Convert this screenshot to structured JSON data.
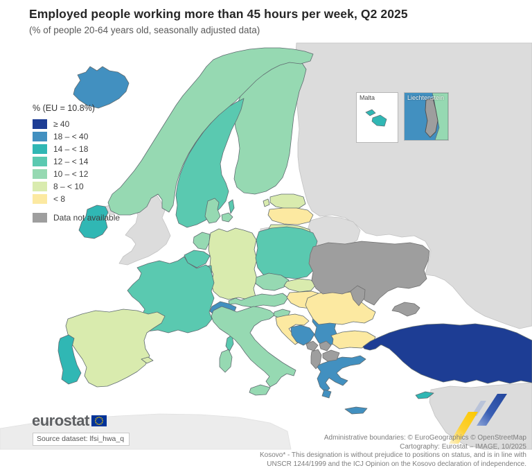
{
  "header": {
    "title": "Employed people working more than 45 hours per week, Q2 2025",
    "subtitle": "(% of people 20-64 years old, seasonally adjusted data)"
  },
  "legend": {
    "title": "% (EU = 10.8%)",
    "classes": [
      {
        "id": "c40",
        "label": "≥ 40",
        "color": "#1d3d94"
      },
      {
        "id": "c18",
        "label": "18 – < 40",
        "color": "#4290c0"
      },
      {
        "id": "c14",
        "label": "14 – < 18",
        "color": "#30b7b4"
      },
      {
        "id": "c12",
        "label": "12 – < 14",
        "color": "#5ac9b0"
      },
      {
        "id": "c10",
        "label": "10 – < 12",
        "color": "#96d9b2"
      },
      {
        "id": "c8",
        "label": "8 – < 10",
        "color": "#d9ebae"
      },
      {
        "id": "c0",
        "label": "< 8",
        "color": "#fce9a1"
      }
    ],
    "no_data": {
      "id": "na",
      "label": "Data not available",
      "color": "#9e9e9e"
    }
  },
  "map": {
    "colors": {
      "sea": "#ffffff",
      "other_land": "#dcdcdc",
      "africa_land": "#ececec",
      "border_data": "#5f6b70",
      "border_other": "#c2c2c2",
      "ribbon_yellow": "#fcc900",
      "ribbon_blue": "#2a52a8"
    },
    "countries": {
      "iceland": "c18",
      "norway": "c10",
      "sweden": "c12",
      "finland": "c10",
      "denmark": "c10",
      "estonia": "c8",
      "latvia": "c0",
      "lithuania": "c8",
      "ireland": "c14",
      "netherlands": "c10",
      "belgium": "c12",
      "luxembourg": "c12",
      "germany": "c8",
      "poland": "c12",
      "czechia": "c10",
      "slovakia": "c8",
      "austria": "c10",
      "hungary": "c0",
      "switzerland": "c18",
      "france": "c12",
      "italy": "c10",
      "slovenia": "c10",
      "croatia": "c0",
      "bosnia": "c18",
      "serbia": "c18",
      "montenegro": "na",
      "kosovo": "na",
      "north_macedonia": "na",
      "albania": "na",
      "greece": "c18",
      "bulgaria": "c0",
      "romania": "c0",
      "moldova": "na",
      "ukraine": "na",
      "turkey": "c40",
      "cyprus": "c14",
      "spain": "c8",
      "portugal": "c14",
      "malta": "c14",
      "liechtenstein": "na",
      "gotland": "c12",
      "crete": "c18",
      "corsica": "c12",
      "sicily": "c10",
      "sardinia": "c10",
      "uk": "other",
      "n_ireland": "other",
      "russia": "other",
      "belarus": "other",
      "kaliningrad": "other",
      "middle_east": "other"
    }
  },
  "insets": {
    "malta": {
      "label": "Malta"
    },
    "liechtenstein": {
      "label": "Liechtenstein"
    }
  },
  "footer": {
    "logo_text": "eurostat",
    "eu_flag": {
      "blue": "#003399",
      "star": "#ffcc00"
    },
    "source": "Source dataset: lfsi_hwa_q",
    "attribution": [
      "Administrative boundaries: © EuroGeographics © OpenStreetMap",
      "Cartography: Eurostat – IMAGE, 10/2025",
      "Kosovo* - This designation is without prejudice to positions on status, and is in line with",
      "UNSCR 1244/1999 and the ICJ Opinion on the Kosovo declaration of independence."
    ]
  },
  "chart_data": {
    "type": "choropleth-map",
    "title": "Employed people working more than 45 hours per week, Q2 2025",
    "subtitle": "(% of people 20-64 years old, seasonally adjusted data)",
    "unit": "% of people 20-64 years old",
    "eu_value": 10.8,
    "legend_bins": [
      "≥ 40",
      "18 – < 40",
      "14 – < 18",
      "12 – < 14",
      "10 – < 12",
      "8 – < 10",
      "< 8",
      "Data not available"
    ],
    "values_by_bin": {
      "≥ 40": [
        "Turkey"
      ],
      "18 – < 40": [
        "Iceland",
        "Switzerland",
        "Bosnia and Herzegovina",
        "Serbia",
        "Greece"
      ],
      "14 – < 18": [
        "Ireland",
        "Portugal",
        "Cyprus",
        "Malta"
      ],
      "12 – < 14": [
        "France",
        "Belgium",
        "Luxembourg",
        "Poland",
        "Sweden"
      ],
      "10 – < 12": [
        "Norway",
        "Finland",
        "Denmark",
        "Netherlands",
        "Czechia",
        "Austria",
        "Slovenia",
        "Italy"
      ],
      "8 – < 10": [
        "Germany",
        "Spain",
        "Estonia",
        "Lithuania",
        "Slovakia"
      ],
      "< 8": [
        "Latvia",
        "Hungary",
        "Croatia",
        "Romania",
        "Bulgaria"
      ],
      "Data not available": [
        "Ukraine",
        "Moldova",
        "Montenegro",
        "Kosovo",
        "North Macedonia",
        "Albania",
        "Liechtenstein"
      ]
    }
  }
}
